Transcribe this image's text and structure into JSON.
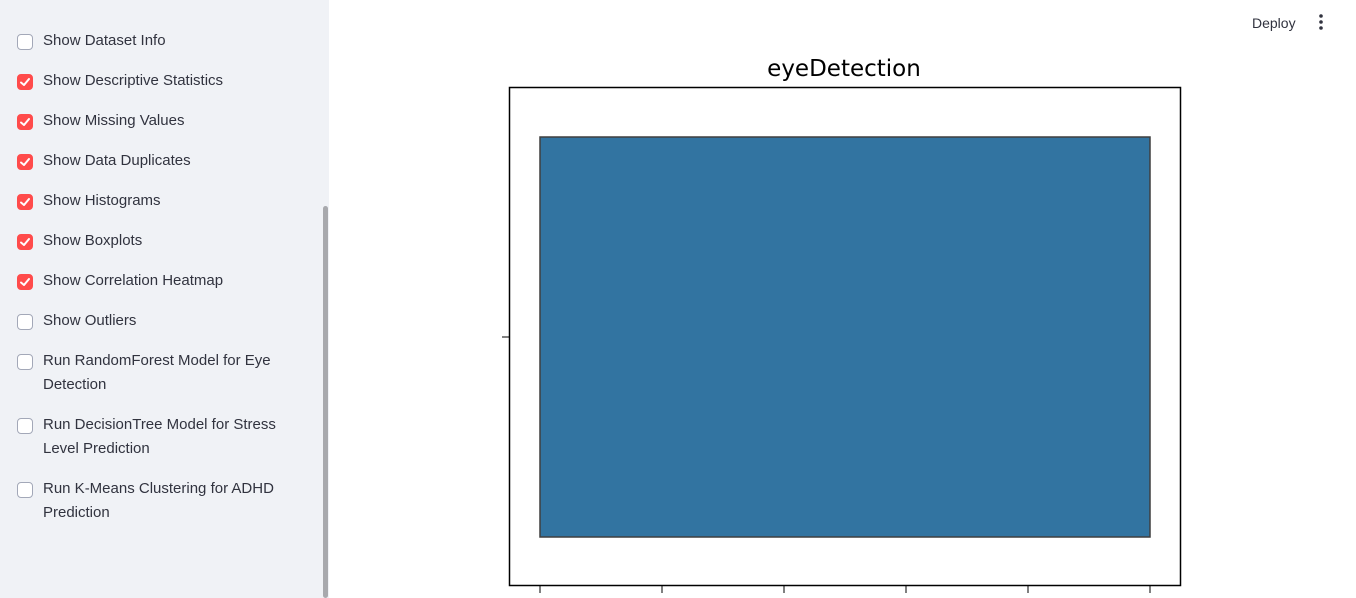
{
  "header": {
    "deploy_label": "Deploy",
    "menu_icon": "vertical-ellipsis-icon"
  },
  "sidebar": {
    "items": [
      {
        "label": "Show Dataset Info",
        "checked": false
      },
      {
        "label": "Show Descriptive Statistics",
        "checked": true
      },
      {
        "label": "Show Missing Values",
        "checked": true
      },
      {
        "label": "Show Data Duplicates",
        "checked": true
      },
      {
        "label": "Show Histograms",
        "checked": true
      },
      {
        "label": "Show Boxplots",
        "checked": true
      },
      {
        "label": "Show Correlation Heatmap",
        "checked": true
      },
      {
        "label": "Show Outliers",
        "checked": false
      },
      {
        "label": "Run RandomForest Model for Eye Detection",
        "checked": false
      },
      {
        "label": "Run DecisionTree Model for Stress Level Prediction",
        "checked": false
      },
      {
        "label": "Run K-Means Clustering for ADHD Prediction",
        "checked": false
      }
    ]
  },
  "colors": {
    "accent": "#ff4b4b",
    "sidebar_bg": "#f0f2f6",
    "box_fill": "#3274a1"
  },
  "chart_data": {
    "type": "boxplot",
    "title": "eyeDetection",
    "xlim": [
      0,
      1
    ],
    "box": {
      "q1": 0,
      "q3": 1
    },
    "x_tick_count": 6,
    "y_tick_count": 1
  }
}
